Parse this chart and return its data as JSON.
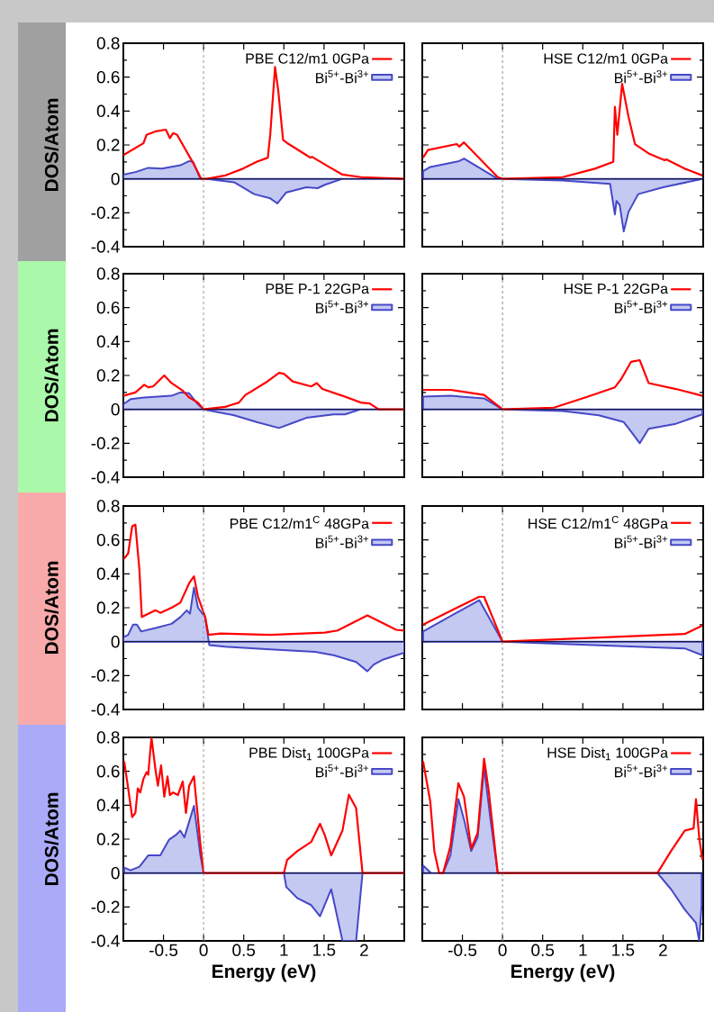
{
  "chart_data": [
    {
      "type": "line",
      "ylabel": "DOS/Atom",
      "xlim": [
        -1,
        2.5
      ],
      "ylim": [
        -0.4,
        0.8
      ],
      "xticks": [
        -0.5,
        0,
        0.5,
        1,
        1.5,
        2
      ],
      "yticks": [
        -0.4,
        -0.2,
        0,
        0.2,
        0.4,
        0.6,
        0.8
      ],
      "tick_labels": "y",
      "legend": "top right",
      "ref_lines": [
        {
          "axis": "x",
          "value": 0,
          "color": "#a0a0a0",
          "line_style": "dashed"
        },
        {
          "axis": "y",
          "value": 0,
          "color": "#000000",
          "line_style": "solid"
        }
      ],
      "series": [
        {
          "name": "PBE C12/m1 0GPa",
          "color": "#ff0000",
          "x": [
            -1.0,
            -0.75,
            -0.71,
            -0.6,
            -0.47,
            -0.42,
            -0.38,
            -0.33,
            -0.12,
            -0.03,
            0.04,
            0.27,
            0.49,
            0.66,
            0.8,
            0.83,
            0.89,
            0.93,
            0.99,
            1.06,
            1.28,
            1.33,
            1.35,
            1.51,
            1.73,
            1.96,
            2.5
          ],
          "values": [
            0.14,
            0.21,
            0.26,
            0.28,
            0.29,
            0.24,
            0.27,
            0.26,
            0.085,
            0,
            0,
            0.02,
            0.06,
            0.1,
            0.125,
            0.26,
            0.66,
            0.52,
            0.23,
            0.205,
            0.14,
            0.125,
            0.13,
            0.085,
            0.025,
            0.01,
            0
          ]
        },
        {
          "name": "Bi$^{5+}$-Bi$^{3+}$",
          "type": "area",
          "color": "#c3c9f1",
          "x": [
            -1.0,
            -0.85,
            -0.69,
            -0.52,
            -0.29,
            -0.18,
            -0.13,
            -0.04,
            0.04,
            0.38,
            0.63,
            0.83,
            0.92,
            1.03,
            1.28,
            1.42,
            1.51,
            1.73,
            2.5
          ],
          "values": [
            0.025,
            0.04,
            0.065,
            0.06,
            0.08,
            0.105,
            0.1,
            0,
            0,
            -0.02,
            -0.09,
            -0.115,
            -0.145,
            -0.08,
            -0.05,
            -0.055,
            -0.035,
            0,
            0
          ]
        }
      ]
    },
    {
      "type": "line",
      "xlim": [
        -1,
        2.5
      ],
      "ylim": [
        -0.4,
        0.8
      ],
      "xticks": [
        -0.5,
        0,
        0.5,
        1,
        1.5,
        2
      ],
      "yticks": [
        -0.4,
        -0.2,
        0,
        0.2,
        0.4,
        0.6,
        0.8
      ],
      "tick_labels": false,
      "legend": "top right",
      "ref_lines": [
        {
          "axis": "x",
          "value": 0,
          "color": "#a0a0a0",
          "line_style": "dashed"
        },
        {
          "axis": "y",
          "value": 0,
          "color": "#000000",
          "line_style": "solid"
        }
      ],
      "series": [
        {
          "name": "HSE C12/m1 0GPa",
          "color": "#ff0000",
          "x": [
            -0.99,
            -0.93,
            -0.57,
            -0.54,
            -0.48,
            -0.06,
            0,
            0.75,
            1.15,
            1.38,
            1.4,
            1.43,
            1.49,
            1.57,
            1.65,
            1.82,
            2.02,
            2.04,
            2.27,
            2.49
          ],
          "values": [
            0.125,
            0.17,
            0.205,
            0.19,
            0.215,
            0.01,
            0,
            0.01,
            0.06,
            0.1,
            0.425,
            0.26,
            0.56,
            0.365,
            0.205,
            0.15,
            0.11,
            0.115,
            0.06,
            0.02
          ]
        },
        {
          "name": "Bi$^{5+}$-Bi$^{3+}$",
          "type": "area",
          "color": "#c3c9f1",
          "x": [
            -0.99,
            -0.9,
            -0.54,
            -0.48,
            -0.06,
            0,
            0.75,
            1.34,
            1.4,
            1.42,
            1.46,
            1.51,
            1.57,
            1.69,
            2.0,
            2.49
          ],
          "values": [
            0.045,
            0.07,
            0.105,
            0.12,
            0,
            0,
            -0.01,
            -0.03,
            -0.21,
            -0.13,
            -0.155,
            -0.31,
            -0.195,
            -0.09,
            -0.05,
            0
          ]
        }
      ]
    },
    {
      "type": "line",
      "ylabel": "DOS/Atom",
      "xlim": [
        -1,
        2.5
      ],
      "ylim": [
        -0.4,
        0.8
      ],
      "xticks": [
        -0.5,
        0,
        0.5,
        1,
        1.5,
        2
      ],
      "yticks": [
        -0.4,
        -0.2,
        0,
        0.2,
        0.4,
        0.6,
        0.8
      ],
      "tick_labels": "y",
      "legend": "top right",
      "ref_lines": [
        {
          "axis": "x",
          "value": 0,
          "color": "#a0a0a0",
          "line_style": "dashed"
        },
        {
          "axis": "y",
          "value": 0,
          "color": "#000000",
          "line_style": "solid"
        }
      ],
      "series": [
        {
          "name": "PBE P-1 22GPa",
          "color": "#ff0000",
          "x": [
            -1.0,
            -0.85,
            -0.74,
            -0.69,
            -0.63,
            -0.49,
            -0.4,
            -0.26,
            -0.18,
            -0.07,
            0,
            0.27,
            0.44,
            0.52,
            0.61,
            0.78,
            0.94,
            1.0,
            1.11,
            1.34,
            1.41,
            1.48,
            1.73,
            1.96,
            2.07,
            2.18,
            2.5
          ],
          "values": [
            0.08,
            0.1,
            0.145,
            0.13,
            0.135,
            0.2,
            0.155,
            0.11,
            0.07,
            0.04,
            0,
            0.015,
            0.04,
            0.085,
            0.11,
            0.16,
            0.215,
            0.21,
            0.165,
            0.135,
            0.155,
            0.12,
            0.08,
            0.04,
            0.035,
            0,
            0
          ]
        },
        {
          "name": "Bi$^{5+}$-Bi$^{3+}$",
          "type": "area",
          "color": "#c3c9f1",
          "x": [
            -1.0,
            -0.91,
            -0.74,
            -0.57,
            -0.4,
            -0.29,
            -0.18,
            -0.07,
            0,
            0.38,
            0.66,
            0.94,
            1.11,
            1.28,
            1.62,
            1.76,
            1.96,
            2.18,
            2.5
          ],
          "values": [
            0.03,
            0.06,
            0.07,
            0.075,
            0.08,
            0.1,
            0.095,
            0.03,
            0,
            -0.035,
            -0.075,
            -0.11,
            -0.08,
            -0.05,
            -0.03,
            -0.03,
            0,
            0,
            0
          ]
        }
      ]
    },
    {
      "type": "line",
      "xlim": [
        -1,
        2.5
      ],
      "ylim": [
        -0.4,
        0.8
      ],
      "xticks": [
        -0.5,
        0,
        0.5,
        1,
        1.5,
        2
      ],
      "yticks": [
        -0.4,
        -0.2,
        0,
        0.2,
        0.4,
        0.6,
        0.8
      ],
      "tick_labels": false,
      "legend": "top right",
      "ref_lines": [
        {
          "axis": "x",
          "value": 0,
          "color": "#a0a0a0",
          "line_style": "dashed"
        },
        {
          "axis": "y",
          "value": 0,
          "color": "#000000",
          "line_style": "solid"
        }
      ],
      "series": [
        {
          "name": "HSE P-1 22GPa",
          "color": "#ff0000",
          "x": [
            -0.99,
            -0.65,
            -0.23,
            0,
            0.64,
            1.03,
            1.4,
            1.48,
            1.6,
            1.71,
            1.82,
            2.16,
            2.49
          ],
          "values": [
            0.115,
            0.115,
            0.085,
            0,
            0.01,
            0.07,
            0.13,
            0.18,
            0.28,
            0.29,
            0.155,
            0.12,
            0.08
          ]
        },
        {
          "name": "Bi$^{5+}$-Bi$^{3+}$",
          "type": "area",
          "color": "#c3c9f1",
          "x": [
            -0.99,
            -0.65,
            -0.23,
            0,
            0.75,
            1.2,
            1.51,
            1.6,
            1.71,
            1.82,
            2.16,
            2.49
          ],
          "values": [
            0.075,
            0.08,
            0.065,
            0,
            -0.01,
            -0.035,
            -0.075,
            -0.13,
            -0.2,
            -0.115,
            -0.085,
            -0.03
          ]
        }
      ]
    },
    {
      "type": "line",
      "ylabel": "DOS/Atom",
      "xlim": [
        -1,
        2.5
      ],
      "ylim": [
        -0.4,
        0.8
      ],
      "xticks": [
        -0.5,
        0,
        0.5,
        1,
        1.5,
        2
      ],
      "yticks": [
        -0.4,
        -0.2,
        0,
        0.2,
        0.4,
        0.6,
        0.8
      ],
      "tick_labels": "y",
      "legend": "top right",
      "ref_lines": [
        {
          "axis": "x",
          "value": 0,
          "color": "#a0a0a0",
          "line_style": "dashed"
        },
        {
          "axis": "y",
          "value": 0,
          "color": "#000000",
          "line_style": "solid"
        }
      ],
      "series": [
        {
          "name": "PBE C12/m1$^{C}$ 48GPa",
          "color": "#ff0000",
          "x": [
            -1.0,
            -0.94,
            -0.89,
            -0.85,
            -0.8,
            -0.77,
            -0.6,
            -0.54,
            -0.4,
            -0.29,
            -0.18,
            -0.12,
            -0.07,
            0.02,
            0.06,
            0.21,
            0.83,
            1.51,
            1.67,
            2.04,
            2.4,
            2.5
          ],
          "values": [
            0.485,
            0.52,
            0.68,
            0.69,
            0.425,
            0.145,
            0.185,
            0.17,
            0.2,
            0.23,
            0.345,
            0.385,
            0.265,
            0.145,
            0.04,
            0.048,
            0.04,
            0.053,
            0.066,
            0.155,
            0.07,
            0.065
          ]
        },
        {
          "name": "Bi$^{5+}$-Bi$^{3+}$",
          "type": "area",
          "color": "#c3c9f1",
          "x": [
            -1.0,
            -0.94,
            -0.88,
            -0.83,
            -0.78,
            -0.6,
            -0.4,
            -0.29,
            -0.21,
            -0.17,
            -0.12,
            -0.07,
            0.02,
            0.07,
            0.27,
            0.83,
            1.39,
            1.62,
            1.9,
            2.04,
            2.12,
            2.24,
            2.5
          ],
          "values": [
            0.025,
            0.04,
            0.1,
            0.1,
            0.06,
            0.08,
            0.105,
            0.145,
            0.185,
            0.165,
            0.32,
            0.2,
            0.145,
            -0.02,
            -0.03,
            -0.045,
            -0.06,
            -0.08,
            -0.12,
            -0.175,
            -0.135,
            -0.105,
            -0.065
          ]
        }
      ]
    },
    {
      "type": "line",
      "xlim": [
        -1,
        2.5
      ],
      "ylim": [
        -0.4,
        0.8
      ],
      "xticks": [
        -0.5,
        0,
        0.5,
        1,
        1.5,
        2
      ],
      "yticks": [
        -0.4,
        -0.2,
        0,
        0.2,
        0.4,
        0.6,
        0.8
      ],
      "tick_labels": false,
      "legend": "top right",
      "ref_lines": [
        {
          "axis": "x",
          "value": 0,
          "color": "#a0a0a0",
          "line_style": "dashed"
        },
        {
          "axis": "y",
          "value": 0,
          "color": "#000000",
          "line_style": "solid"
        }
      ],
      "series": [
        {
          "name": "HSE C12/m1$^{C}$ 48GPa",
          "color": "#ff0000",
          "x": [
            -0.99,
            -0.29,
            -0.23,
            0,
            2.27,
            2.49
          ],
          "values": [
            0.1,
            0.265,
            0.265,
            0,
            0.045,
            0.095
          ]
        },
        {
          "name": "Bi$^{5+}$-Bi$^{3+}$",
          "type": "area",
          "color": "#c3c9f1",
          "x": [
            -0.99,
            -0.29,
            0,
            2.27,
            2.49
          ],
          "values": [
            0.06,
            0.245,
            0,
            -0.04,
            -0.08
          ]
        }
      ]
    },
    {
      "type": "line",
      "xlabel": "Energy (eV)",
      "ylabel": "DOS/Atom",
      "xlim": [
        -1,
        2.5
      ],
      "ylim": [
        -0.4,
        0.8
      ],
      "xticks": [
        -0.5,
        0,
        0.5,
        1,
        1.5,
        2
      ],
      "yticks": [
        -0.4,
        -0.2,
        0,
        0.2,
        0.4,
        0.6,
        0.8
      ],
      "legend": "top right",
      "ref_lines": [
        {
          "axis": "x",
          "value": 0,
          "color": "#a0a0a0",
          "line_style": "dashed"
        },
        {
          "axis": "y",
          "value": 0,
          "color": "#000000",
          "line_style": "solid"
        }
      ],
      "series": [
        {
          "name": "PBE Dist$_{1}$ 100GPa",
          "color": "#ff0000",
          "x": [
            -0.99,
            -0.94,
            -0.89,
            -0.85,
            -0.82,
            -0.79,
            -0.75,
            -0.71,
            -0.69,
            -0.65,
            -0.6,
            -0.57,
            -0.53,
            -0.49,
            -0.45,
            -0.42,
            -0.38,
            -0.32,
            -0.26,
            -0.22,
            -0.18,
            -0.12,
            -0.04,
            0,
            1.0,
            1.04,
            1.17,
            1.34,
            1.45,
            1.51,
            1.59,
            1.73,
            1.81,
            1.9,
            1.98,
            2.5
          ],
          "values": [
            0.66,
            0.5,
            0.33,
            0.355,
            0.5,
            0.475,
            0.555,
            0.595,
            0.58,
            0.8,
            0.61,
            0.515,
            0.635,
            0.45,
            0.57,
            0.46,
            0.475,
            0.46,
            0.54,
            0.355,
            0.515,
            0.57,
            0.17,
            0,
            0,
            0.077,
            0.13,
            0.183,
            0.29,
            0.223,
            0.104,
            0.25,
            0.462,
            0.383,
            0,
            0
          ]
        },
        {
          "name": "Bi$^{5+}$-Bi$^{3+}$",
          "type": "area",
          "color": "#c3c9f1",
          "x": [
            -0.99,
            -0.91,
            -0.8,
            -0.69,
            -0.63,
            -0.54,
            -0.43,
            -0.35,
            -0.29,
            -0.24,
            -0.18,
            -0.12,
            -0.04,
            0,
            1.0,
            1.03,
            1.17,
            1.34,
            1.45,
            1.59,
            1.73,
            1.9,
            1.98,
            2.5
          ],
          "values": [
            0.032,
            0.016,
            0.037,
            0.104,
            0.104,
            0.104,
            0.197,
            0.223,
            0.25,
            0.21,
            0.303,
            0.396,
            0.104,
            0,
            0,
            -0.082,
            -0.149,
            -0.189,
            -0.255,
            -0.096,
            -0.4,
            -0.4,
            0,
            0
          ]
        }
      ]
    },
    {
      "type": "line",
      "xlabel": "Energy (eV)",
      "xlim": [
        -1,
        2.5
      ],
      "ylim": [
        -0.4,
        0.8
      ],
      "xticks": [
        -0.5,
        0,
        0.5,
        1,
        1.5,
        2
      ],
      "yticks": [
        -0.4,
        -0.2,
        0,
        0.2,
        0.4,
        0.6,
        0.8
      ],
      "tick_labels": "x",
      "legend": "top right",
      "ref_lines": [
        {
          "axis": "x",
          "value": 0,
          "color": "#a0a0a0",
          "line_style": "dashed"
        },
        {
          "axis": "y",
          "value": 0,
          "color": "#000000",
          "line_style": "solid"
        }
      ],
      "series": [
        {
          "name": "HSE Dist$_{1}$ 100GPa",
          "color": "#ff0000",
          "x": [
            -0.99,
            -0.9,
            -0.85,
            -0.79,
            -0.74,
            -0.65,
            -0.55,
            -0.48,
            -0.39,
            -0.31,
            -0.23,
            -0.17,
            -0.06,
            1.93,
            2.1,
            2.27,
            2.38,
            2.41,
            2.45,
            2.49
          ],
          "values": [
            0.66,
            0.42,
            0.13,
            0,
            0,
            0.157,
            0.53,
            0.45,
            0.144,
            0.237,
            0.675,
            0.476,
            0,
            0,
            0.13,
            0.25,
            0.263,
            0.436,
            0.21,
            0.077
          ]
        },
        {
          "name": "Bi$^{5+}$-Bi$^{3+}$",
          "type": "area",
          "color": "#c3c9f1",
          "x": [
            -0.99,
            -0.89,
            -0.74,
            -0.65,
            -0.55,
            -0.48,
            -0.39,
            -0.31,
            -0.23,
            -0.15,
            -0.06,
            1.93,
            2.1,
            2.27,
            2.41,
            2.45,
            2.48
          ],
          "values": [
            0.045,
            0,
            0,
            0.104,
            0.436,
            0.316,
            0.13,
            0.21,
            0.622,
            0.316,
            0,
            0,
            -0.096,
            -0.215,
            -0.295,
            -0.4,
            -0.19
          ]
        }
      ]
    }
  ]
}
